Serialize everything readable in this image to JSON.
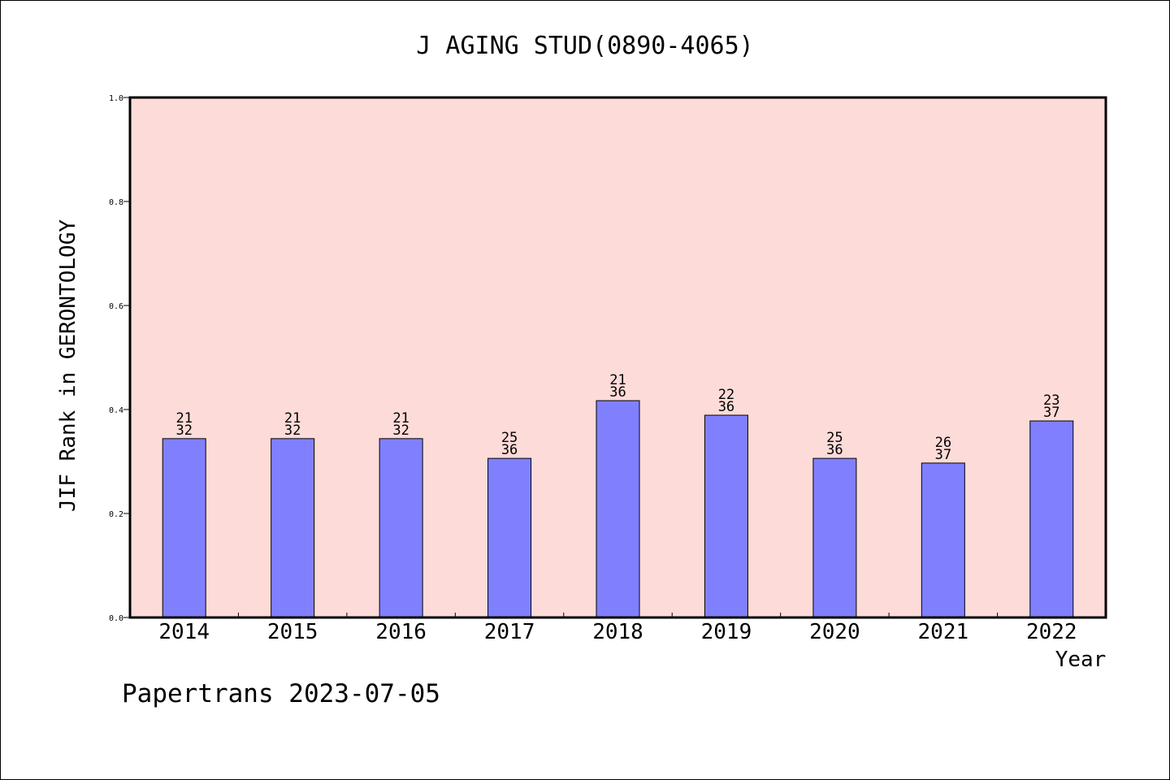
{
  "chart_data": {
    "type": "bar",
    "title": "J AGING STUD(0890-4065)",
    "xlabel": "Year",
    "ylabel": "JIF Rank in GERONTOLOGY",
    "ylim": [
      0.0,
      1.0
    ],
    "yticks": [
      "0.0",
      "0.2",
      "0.4",
      "0.6",
      "0.8",
      "1.0"
    ],
    "categories": [
      "2014",
      "2015",
      "2016",
      "2017",
      "2018",
      "2019",
      "2020",
      "2021",
      "2022"
    ],
    "values": [
      0.344,
      0.344,
      0.344,
      0.306,
      0.417,
      0.389,
      0.306,
      0.297,
      0.378
    ],
    "rank_labels": [
      {
        "rank": "21",
        "total": "32"
      },
      {
        "rank": "21",
        "total": "32"
      },
      {
        "rank": "21",
        "total": "32"
      },
      {
        "rank": "25",
        "total": "36"
      },
      {
        "rank": "21",
        "total": "36"
      },
      {
        "rank": "22",
        "total": "36"
      },
      {
        "rank": "25",
        "total": "36"
      },
      {
        "rank": "26",
        "total": "37"
      },
      {
        "rank": "23",
        "total": "37"
      }
    ],
    "grid": false,
    "colors": {
      "plot_background": "#fddbd8",
      "bar_fill": "#8080ff",
      "bar_stroke": "#000000"
    }
  },
  "footer": {
    "text": "Papertrans 2023-07-05"
  }
}
